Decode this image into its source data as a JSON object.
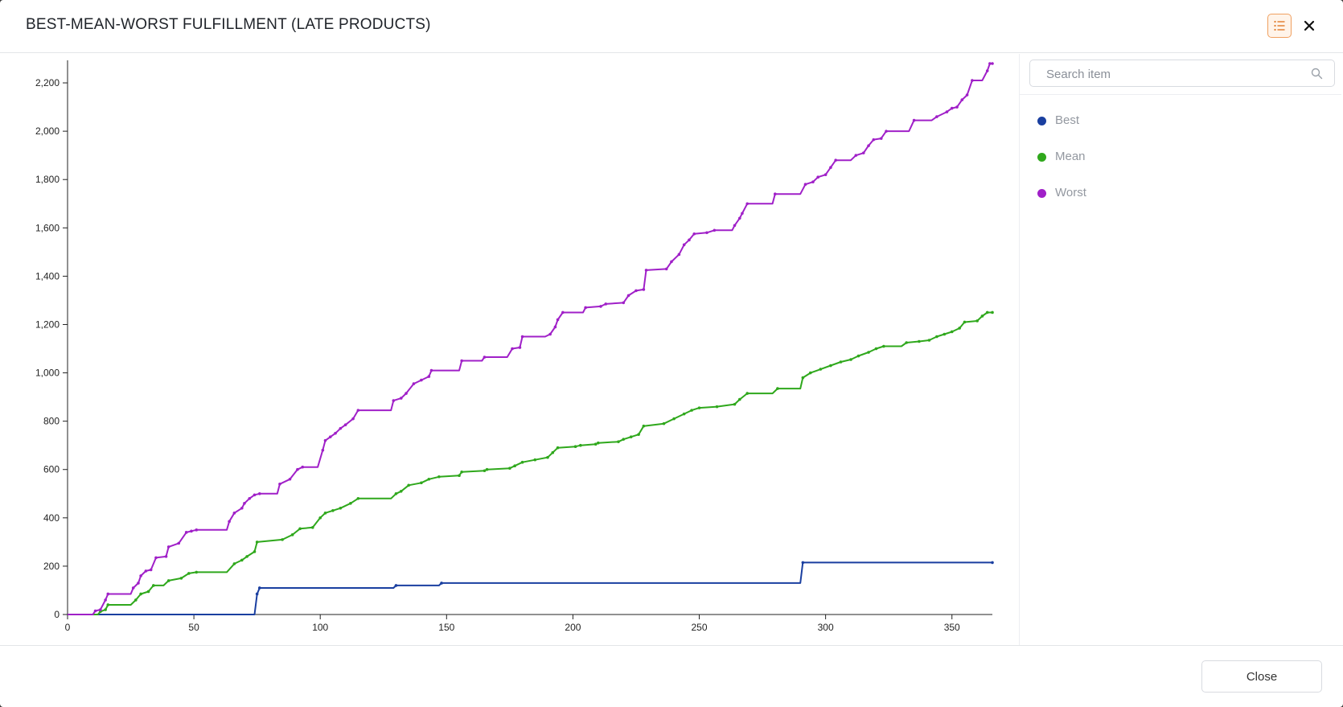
{
  "dialog": {
    "title": "BEST-MEAN-WORST FULFILLMENT (LATE PRODUCTS)",
    "close_button_label": "Close"
  },
  "legend_panel": {
    "search_placeholder": "Search item"
  },
  "icons": {
    "legend_toggle": "list-icon",
    "dialog_close": "close-icon",
    "search": "search-icon"
  },
  "colors": {
    "best": "#1a3fa0",
    "mean": "#2fa81c",
    "worst": "#a020c8",
    "toggle_accent": "#f0a060"
  },
  "chart_data": {
    "type": "line",
    "step": true,
    "grid": false,
    "legend_position": "right-panel",
    "xlim": [
      0,
      366
    ],
    "ylim": [
      0,
      2280
    ],
    "x_ticks": [
      0,
      50,
      100,
      150,
      200,
      250,
      300,
      350
    ],
    "y_ticks": [
      0,
      200,
      400,
      600,
      800,
      1000,
      1200,
      1400,
      1600,
      1800,
      2000,
      2200
    ],
    "x_tick_labels": [
      "0",
      "50",
      "100",
      "150",
      "200",
      "250",
      "300",
      "350"
    ],
    "y_tick_labels": [
      "0",
      "200",
      "400",
      "600",
      "800",
      "1,000",
      "1,200",
      "1,400",
      "1,600",
      "1,800",
      "2,000",
      "2,200"
    ],
    "series": [
      {
        "name": "Best",
        "color": "#1a3fa0",
        "points": [
          [
            0,
            0
          ],
          [
            74,
            0
          ],
          [
            75,
            85
          ],
          [
            76,
            110
          ],
          [
            129,
            110
          ],
          [
            130,
            120
          ],
          [
            147,
            120
          ],
          [
            148,
            130
          ],
          [
            290,
            130
          ],
          [
            291,
            215
          ],
          [
            366,
            215
          ]
        ]
      },
      {
        "name": "Mean",
        "color": "#2fa81c",
        "points": [
          [
            0,
            0
          ],
          [
            12,
            0
          ],
          [
            13,
            12
          ],
          [
            15,
            20
          ],
          [
            16,
            40
          ],
          [
            25,
            40
          ],
          [
            27,
            60
          ],
          [
            29,
            85
          ],
          [
            32,
            95
          ],
          [
            34,
            120
          ],
          [
            38,
            120
          ],
          [
            40,
            140
          ],
          [
            45,
            150
          ],
          [
            48,
            170
          ],
          [
            51,
            175
          ],
          [
            63,
            175
          ],
          [
            66,
            210
          ],
          [
            69,
            225
          ],
          [
            71,
            240
          ],
          [
            74,
            260
          ],
          [
            75,
            300
          ],
          [
            85,
            310
          ],
          [
            89,
            330
          ],
          [
            92,
            355
          ],
          [
            97,
            360
          ],
          [
            100,
            400
          ],
          [
            102,
            420
          ],
          [
            105,
            430
          ],
          [
            108,
            440
          ],
          [
            112,
            460
          ],
          [
            115,
            480
          ],
          [
            128,
            480
          ],
          [
            130,
            500
          ],
          [
            132,
            510
          ],
          [
            135,
            535
          ],
          [
            140,
            545
          ],
          [
            143,
            560
          ],
          [
            147,
            570
          ],
          [
            155,
            575
          ],
          [
            156,
            590
          ],
          [
            165,
            595
          ],
          [
            166,
            600
          ],
          [
            175,
            605
          ],
          [
            177,
            615
          ],
          [
            180,
            630
          ],
          [
            185,
            640
          ],
          [
            190,
            650
          ],
          [
            192,
            670
          ],
          [
            194,
            690
          ],
          [
            201,
            695
          ],
          [
            203,
            700
          ],
          [
            209,
            705
          ],
          [
            210,
            710
          ],
          [
            218,
            715
          ],
          [
            220,
            725
          ],
          [
            223,
            735
          ],
          [
            226,
            745
          ],
          [
            228,
            780
          ],
          [
            236,
            790
          ],
          [
            240,
            810
          ],
          [
            244,
            830
          ],
          [
            247,
            845
          ],
          [
            250,
            855
          ],
          [
            257,
            860
          ],
          [
            264,
            870
          ],
          [
            266,
            890
          ],
          [
            269,
            915
          ],
          [
            279,
            915
          ],
          [
            281,
            935
          ],
          [
            290,
            935
          ],
          [
            291,
            980
          ],
          [
            294,
            1000
          ],
          [
            298,
            1015
          ],
          [
            302,
            1030
          ],
          [
            306,
            1045
          ],
          [
            310,
            1055
          ],
          [
            313,
            1070
          ],
          [
            317,
            1085
          ],
          [
            320,
            1100
          ],
          [
            323,
            1110
          ],
          [
            330,
            1110
          ],
          [
            332,
            1125
          ],
          [
            337,
            1130
          ],
          [
            341,
            1135
          ],
          [
            344,
            1150
          ],
          [
            347,
            1160
          ],
          [
            350,
            1170
          ],
          [
            353,
            1185
          ],
          [
            355,
            1210
          ],
          [
            360,
            1215
          ],
          [
            362,
            1235
          ],
          [
            364,
            1250
          ],
          [
            366,
            1250
          ]
        ]
      },
      {
        "name": "Worst",
        "color": "#a020c8",
        "points": [
          [
            0,
            0
          ],
          [
            10,
            0
          ],
          [
            11,
            15
          ],
          [
            13,
            20
          ],
          [
            15,
            60
          ],
          [
            16,
            85
          ],
          [
            25,
            85
          ],
          [
            26,
            110
          ],
          [
            28,
            130
          ],
          [
            29,
            160
          ],
          [
            31,
            180
          ],
          [
            33,
            185
          ],
          [
            35,
            235
          ],
          [
            39,
            240
          ],
          [
            40,
            280
          ],
          [
            44,
            295
          ],
          [
            47,
            340
          ],
          [
            49,
            345
          ],
          [
            51,
            350
          ],
          [
            63,
            350
          ],
          [
            64,
            385
          ],
          [
            66,
            420
          ],
          [
            69,
            440
          ],
          [
            70,
            460
          ],
          [
            72,
            480
          ],
          [
            74,
            495
          ],
          [
            76,
            500
          ],
          [
            83,
            500
          ],
          [
            84,
            540
          ],
          [
            88,
            560
          ],
          [
            91,
            600
          ],
          [
            93,
            610
          ],
          [
            99,
            610
          ],
          [
            101,
            680
          ],
          [
            102,
            720
          ],
          [
            104,
            735
          ],
          [
            106,
            750
          ],
          [
            108,
            770
          ],
          [
            110,
            785
          ],
          [
            113,
            810
          ],
          [
            115,
            845
          ],
          [
            128,
            845
          ],
          [
            129,
            885
          ],
          [
            132,
            895
          ],
          [
            134,
            915
          ],
          [
            137,
            955
          ],
          [
            140,
            970
          ],
          [
            143,
            985
          ],
          [
            144,
            1010
          ],
          [
            155,
            1010
          ],
          [
            156,
            1050
          ],
          [
            164,
            1050
          ],
          [
            165,
            1065
          ],
          [
            174,
            1065
          ],
          [
            176,
            1100
          ],
          [
            179,
            1105
          ],
          [
            180,
            1150
          ],
          [
            189,
            1150
          ],
          [
            191,
            1160
          ],
          [
            193,
            1190
          ],
          [
            194,
            1220
          ],
          [
            196,
            1250
          ],
          [
            204,
            1250
          ],
          [
            205,
            1270
          ],
          [
            211,
            1275
          ],
          [
            213,
            1285
          ],
          [
            220,
            1290
          ],
          [
            222,
            1320
          ],
          [
            225,
            1340
          ],
          [
            228,
            1345
          ],
          [
            229,
            1425
          ],
          [
            237,
            1430
          ],
          [
            239,
            1460
          ],
          [
            242,
            1490
          ],
          [
            244,
            1530
          ],
          [
            246,
            1550
          ],
          [
            248,
            1575
          ],
          [
            253,
            1580
          ],
          [
            256,
            1590
          ],
          [
            263,
            1590
          ],
          [
            264,
            1610
          ],
          [
            266,
            1640
          ],
          [
            267,
            1660
          ],
          [
            269,
            1700
          ],
          [
            279,
            1700
          ],
          [
            280,
            1740
          ],
          [
            290,
            1740
          ],
          [
            292,
            1780
          ],
          [
            295,
            1790
          ],
          [
            297,
            1810
          ],
          [
            300,
            1820
          ],
          [
            302,
            1850
          ],
          [
            304,
            1880
          ],
          [
            310,
            1880
          ],
          [
            312,
            1900
          ],
          [
            315,
            1910
          ],
          [
            317,
            1940
          ],
          [
            319,
            1965
          ],
          [
            322,
            1970
          ],
          [
            324,
            2000
          ],
          [
            333,
            2000
          ],
          [
            335,
            2045
          ],
          [
            342,
            2045
          ],
          [
            344,
            2060
          ],
          [
            348,
            2080
          ],
          [
            350,
            2095
          ],
          [
            352,
            2100
          ],
          [
            354,
            2130
          ],
          [
            356,
            2150
          ],
          [
            358,
            2210
          ],
          [
            362,
            2210
          ],
          [
            364,
            2250
          ],
          [
            365,
            2280
          ],
          [
            366,
            2280
          ]
        ]
      }
    ]
  }
}
